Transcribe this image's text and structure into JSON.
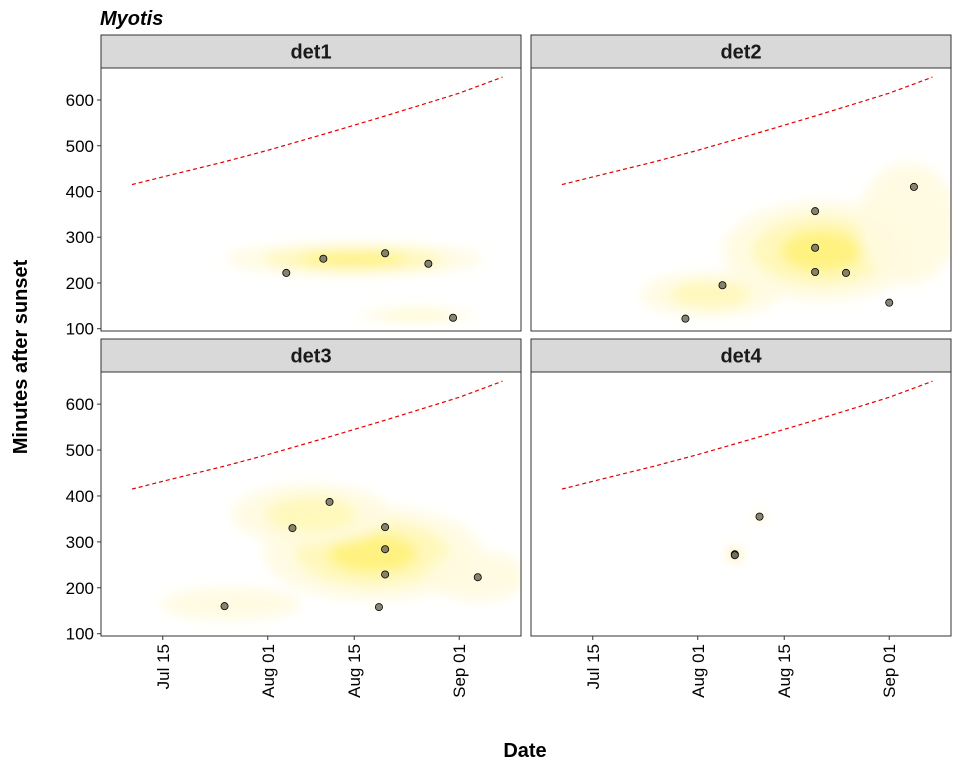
{
  "chart_data": {
    "type": "scatter",
    "title": "Myotis",
    "xlabel": "Date",
    "ylabel": "Minutes after sunset",
    "x_ticks": [
      "Jul 15",
      "Aug 01",
      "Aug 15",
      "Sep 01"
    ],
    "y_ticks": [
      100,
      200,
      300,
      400,
      500,
      600
    ],
    "xlim": [
      "2020-07-05",
      "2020-09-11"
    ],
    "ylim": [
      95,
      670
    ],
    "sunrise_line": {
      "color": "#e00000",
      "style": "dashed",
      "points": [
        [
          "2020-07-10",
          415
        ],
        [
          "2020-07-15",
          432
        ],
        [
          "2020-07-25",
          465
        ],
        [
          "2020-08-01",
          490
        ],
        [
          "2020-08-10",
          525
        ],
        [
          "2020-08-20",
          565
        ],
        [
          "2020-09-01",
          615
        ],
        [
          "2020-09-08",
          650
        ]
      ]
    },
    "density_colors": [
      "#fffbe0",
      "#fff8b8",
      "#fff27a",
      "#ffd000",
      "#f5a000",
      "#000000"
    ],
    "panels": [
      {
        "name": "det1",
        "points": [
          [
            "2020-08-04",
            222
          ],
          [
            "2020-08-10",
            253
          ],
          [
            "2020-08-20",
            265
          ],
          [
            "2020-08-27",
            242
          ],
          [
            "2020-08-31",
            124
          ]
        ],
        "density": [
          {
            "x": "2020-08-15",
            "y": 252,
            "sx": 13,
            "sy": 30,
            "level": 2
          },
          {
            "x": "2020-08-25",
            "y": 130,
            "sx": 6,
            "sy": 10,
            "level": 1
          }
        ]
      },
      {
        "name": "det2",
        "points": [
          [
            "2020-07-30",
            122
          ],
          [
            "2020-08-05",
            195
          ],
          [
            "2020-08-20",
            357
          ],
          [
            "2020-08-20",
            277
          ],
          [
            "2020-08-20",
            224
          ],
          [
            "2020-08-25",
            222
          ],
          [
            "2020-09-01",
            157
          ],
          [
            "2020-09-05",
            410
          ]
        ],
        "density": [
          {
            "x": "2020-08-21",
            "y": 270,
            "sx": 10,
            "sy": 90,
            "level": 2
          },
          {
            "x": "2020-08-03",
            "y": 175,
            "sx": 7,
            "sy": 40,
            "level": 1
          },
          {
            "x": "2020-09-04",
            "y": 330,
            "sx": 5,
            "sy": 110,
            "level": 0
          }
        ]
      },
      {
        "name": "det3",
        "points": [
          [
            "2020-07-25",
            160
          ],
          [
            "2020-08-05",
            330
          ],
          [
            "2020-08-11",
            387
          ],
          [
            "2020-08-20",
            332
          ],
          [
            "2020-08-20",
            284
          ],
          [
            "2020-08-20",
            229
          ],
          [
            "2020-08-19",
            158
          ],
          [
            "2020-09-04",
            223
          ]
        ],
        "density": [
          {
            "x": "2020-08-18",
            "y": 275,
            "sx": 11,
            "sy": 85,
            "level": 2
          },
          {
            "x": "2020-08-08",
            "y": 360,
            "sx": 8,
            "sy": 55,
            "level": 1
          },
          {
            "x": "2020-07-26",
            "y": 165,
            "sx": 7,
            "sy": 30,
            "level": 0
          },
          {
            "x": "2020-09-04",
            "y": 225,
            "sx": 5,
            "sy": 45,
            "level": 0
          }
        ]
      },
      {
        "name": "det4",
        "points": [
          [
            "2020-08-07",
            273
          ],
          [
            "2020-08-07",
            271
          ],
          [
            "2020-08-11",
            355
          ]
        ],
        "density": [
          {
            "x": "2020-08-07",
            "y": 272,
            "sx": 0.8,
            "sy": 10,
            "level": 4
          },
          {
            "x": "2020-08-11",
            "y": 355,
            "sx": 0.5,
            "sy": 6,
            "level": 3
          }
        ]
      }
    ]
  }
}
